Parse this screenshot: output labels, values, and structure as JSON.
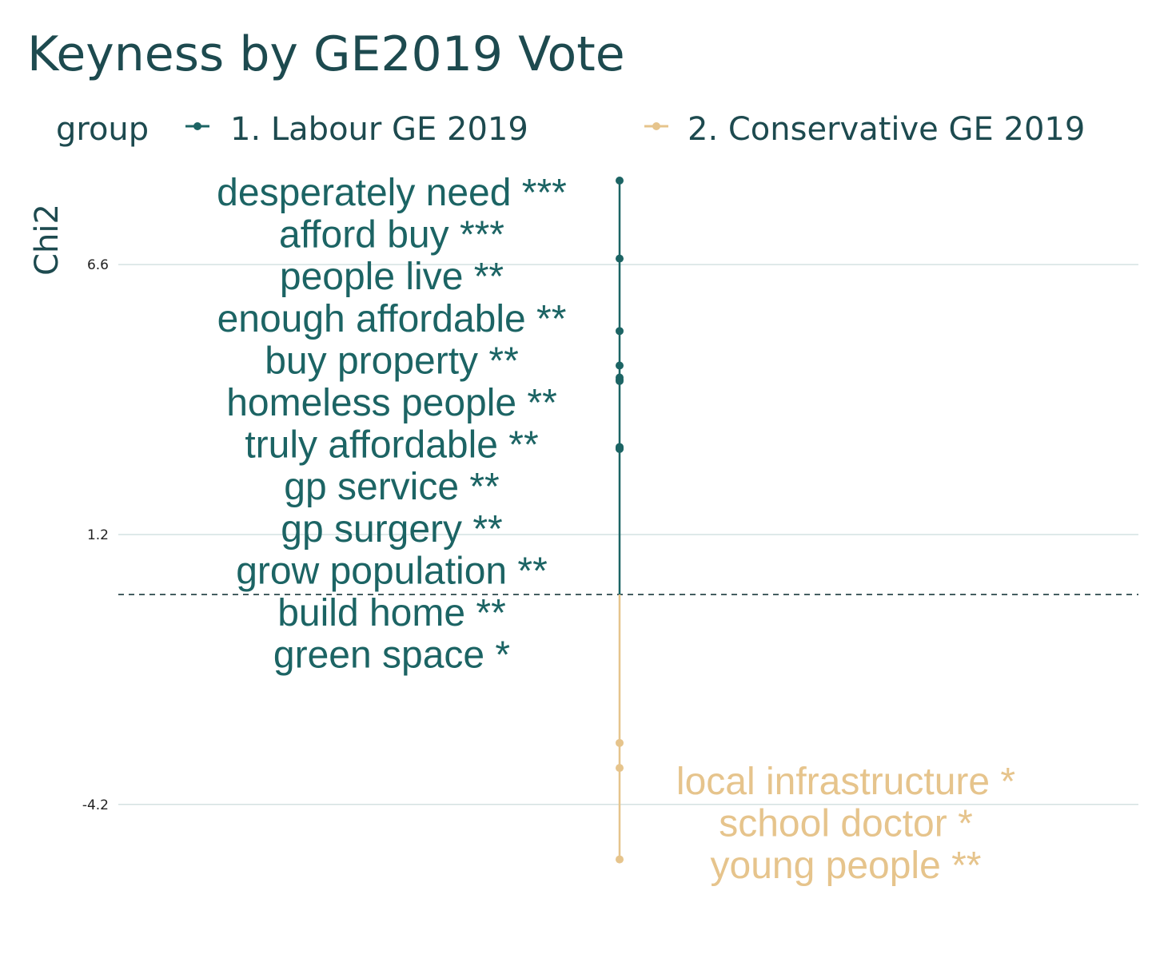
{
  "chart_data": {
    "type": "scatter",
    "title": "Keyness by GE2019 Vote",
    "ylabel": "Chi2",
    "ylim": [
      -5.85,
      8.6
    ],
    "yticks": [
      6.6,
      1.2,
      -4.2
    ],
    "ytick_labels": [
      "6.6",
      "1.2",
      "-4.2"
    ],
    "reference_line": {
      "y": 0,
      "style": "dashed",
      "color": "#1b3a3f"
    },
    "grid": "horizontal",
    "legend": {
      "title": "group",
      "placement": "top",
      "entries": [
        {
          "label": "1. Labour GE 2019",
          "color": "#1c6464"
        },
        {
          "label": "2. Conservative GE 2019",
          "color": "#e6c48c"
        }
      ]
    },
    "series": [
      {
        "name": "1. Labour GE 2019",
        "color": "#1c6464",
        "points": [
          {
            "word": "desperately need ***",
            "y": 8.28
          },
          {
            "word": "afford buy ***",
            "y": 6.72
          },
          {
            "word": "people live **",
            "y": 5.27
          },
          {
            "word": "enough affordable **",
            "y": 4.58
          },
          {
            "word": "buy property **",
            "y": 4.34
          },
          {
            "word": "homeless people **",
            "y": 4.3
          },
          {
            "word": "truly affordable **",
            "y": 4.27
          },
          {
            "word": "gp service **",
            "y": 2.95
          },
          {
            "word": "gp surgery **",
            "y": 2.94
          },
          {
            "word": "grow population **",
            "y": 2.93
          },
          {
            "word": "build home **",
            "y": 2.92
          },
          {
            "word": "green space *",
            "y": 2.91
          }
        ]
      },
      {
        "name": "2. Conservative GE 2019",
        "color": "#e6c48c",
        "points": [
          {
            "word": "local infrastructure *",
            "y": -2.97
          },
          {
            "word": "school doctor *",
            "y": -3.47
          },
          {
            "word": "young people **",
            "y": -5.3
          }
        ]
      }
    ]
  }
}
